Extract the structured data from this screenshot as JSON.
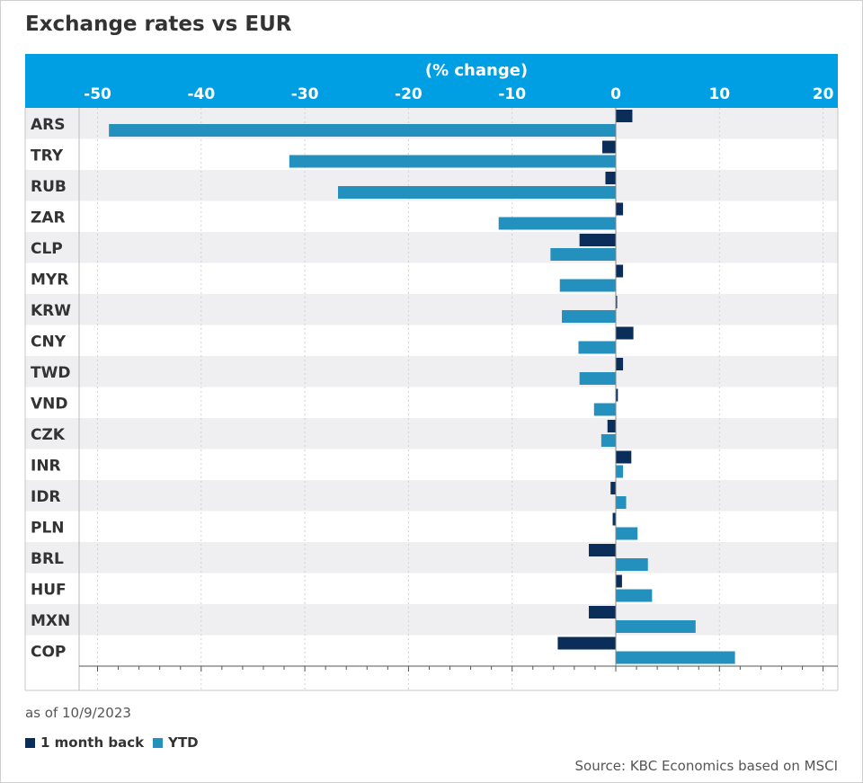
{
  "header": {
    "title": "Exchange rates vs EUR"
  },
  "colors": {
    "band": "#009FE3",
    "one_month": "#0B2D5A",
    "ytd": "#2390BD",
    "stripe": "#EFEEF0",
    "grid": "#D2D2D2"
  },
  "footer": {
    "as_of": "as of 10/9/2023",
    "source": "Source: KBC Economics based on MSCI"
  },
  "chart_data": {
    "type": "bar",
    "orientation": "horizontal",
    "title": "Exchange rates vs EUR",
    "axis_title": "(% change)",
    "xlim": [
      -52,
      21
    ],
    "ticks": [
      -50,
      -40,
      -30,
      -20,
      -10,
      0,
      10,
      20
    ],
    "tick_labels": [
      "-50",
      "-40",
      "-30",
      "-20",
      "-10",
      "0",
      "10",
      "20"
    ],
    "categories": [
      "ARS",
      "TRY",
      "RUB",
      "ZAR",
      "CLP",
      "MYR",
      "KRW",
      "CNY",
      "TWD",
      "VND",
      "CZK",
      "INR",
      "IDR",
      "PLN",
      "BRL",
      "HUF",
      "MXN",
      "COP"
    ],
    "series": [
      {
        "name": "1 month back",
        "color": "#0B2D5A",
        "values": [
          1.6,
          -1.3,
          -1.0,
          0.7,
          -3.5,
          0.7,
          0.1,
          1.7,
          0.7,
          0.2,
          -0.8,
          1.5,
          -0.5,
          -0.3,
          -2.6,
          0.6,
          -2.6,
          -5.6
        ]
      },
      {
        "name": "YTD",
        "color": "#2390BD",
        "values": [
          -48.9,
          -31.5,
          -26.8,
          -11.3,
          -6.3,
          -5.4,
          -5.2,
          -3.6,
          -3.5,
          -2.1,
          -1.4,
          0.7,
          1.0,
          2.1,
          3.1,
          3.5,
          7.7,
          11.5
        ]
      }
    ],
    "legend": "bottom-left",
    "grid": true
  }
}
